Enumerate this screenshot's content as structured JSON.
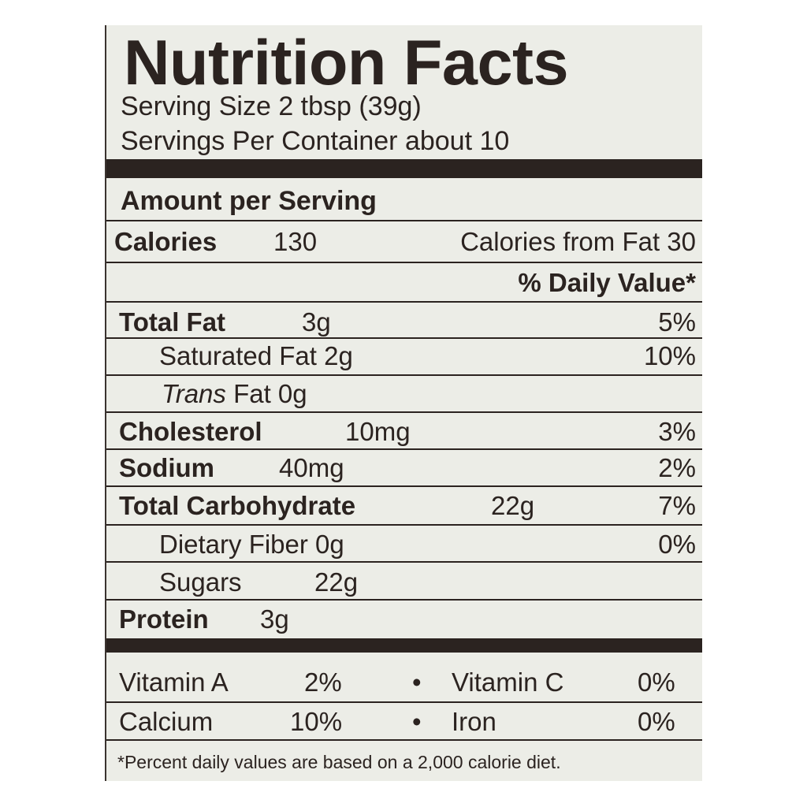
{
  "title": "Nutrition Facts",
  "serving_size": "Serving Size  2 tbsp (39g)",
  "servings_per_container": "Servings Per Container about 10",
  "amount_per_serving": "Amount per Serving",
  "calories": {
    "label": "Calories",
    "value": "130",
    "from_fat": "Calories from Fat 30"
  },
  "daily_value_header": "% Daily Value*",
  "nutrients": [
    {
      "label": "Total Fat",
      "amount": "3g",
      "dv": "5%"
    },
    {
      "label": "Saturated Fat 2g",
      "dv": "10%"
    },
    {
      "label_italic": "Trans",
      "label": " Fat 0g"
    },
    {
      "label": "Cholesterol",
      "amount": "10mg",
      "dv": "3%"
    },
    {
      "label": "Sodium",
      "amount": "40mg",
      "dv": "2%"
    },
    {
      "label": "Total Carbohydrate",
      "amount": "22g",
      "dv": "7%"
    },
    {
      "label": "Dietary Fiber 0g",
      "dv": "0%"
    },
    {
      "label": "Sugars",
      "amount": "22g"
    },
    {
      "label": "Protein",
      "amount": "3g"
    }
  ],
  "vitamins": [
    {
      "left_label": "Vitamin A",
      "left_value": "2%",
      "bullet": "•",
      "right_label": "Vitamin C",
      "right_value": "0%"
    },
    {
      "left_label": "Calcium",
      "left_value": "10%",
      "bullet": "•",
      "right_label": "Iron",
      "right_value": "0%"
    }
  ],
  "footnote": "*Percent daily values are based on a 2,000 calorie diet.",
  "colors": {
    "background": "#ecede7",
    "ink": "#2b2320"
  }
}
